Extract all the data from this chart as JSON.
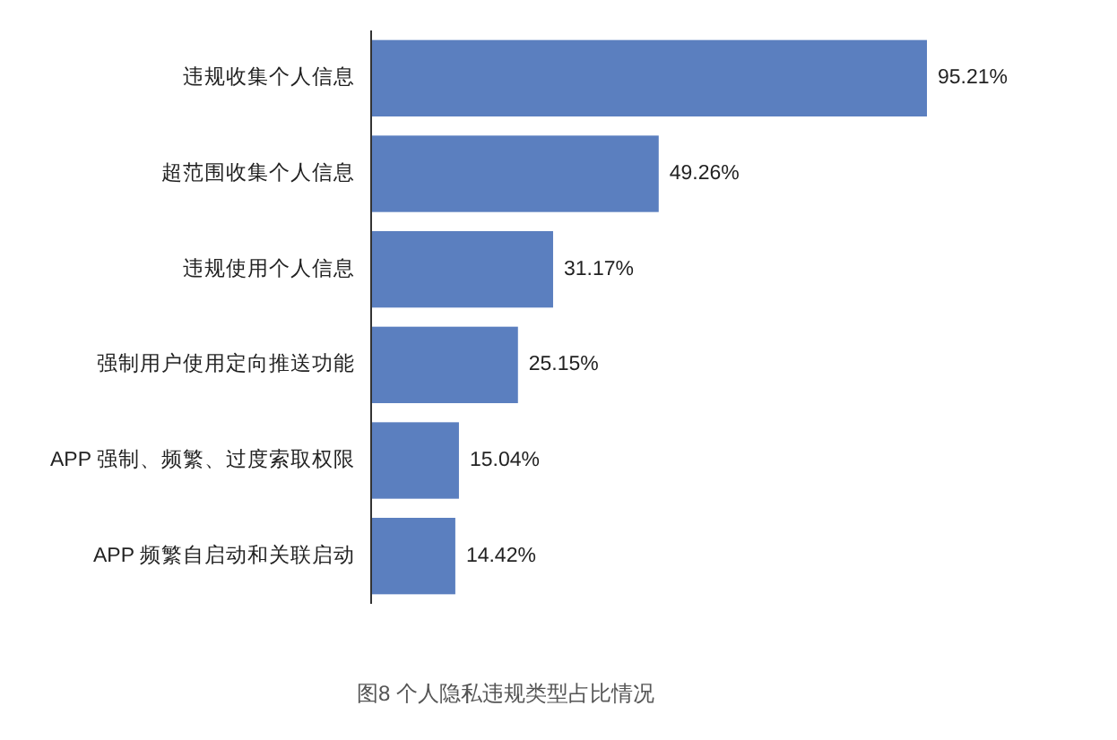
{
  "chart_data": {
    "type": "bar",
    "orientation": "horizontal",
    "categories": [
      "违规收集个人信息",
      "超范围收集个人信息",
      "违规使用个人信息",
      "强制用户使用定向推送功能",
      "APP 强制、频繁、过度索取权限",
      "APP 频繁自启动和关联启动"
    ],
    "values": [
      95.21,
      49.26,
      31.17,
      25.15,
      15.04,
      14.42
    ],
    "color": "#5b7fbf",
    "value_labels": [
      "95.21%",
      "49.26%",
      "31.17%",
      "25.15%",
      "15.04%",
      "14.42%"
    ],
    "annotations": [
      "图8 个人隐私违规类型占比情况"
    ]
  }
}
